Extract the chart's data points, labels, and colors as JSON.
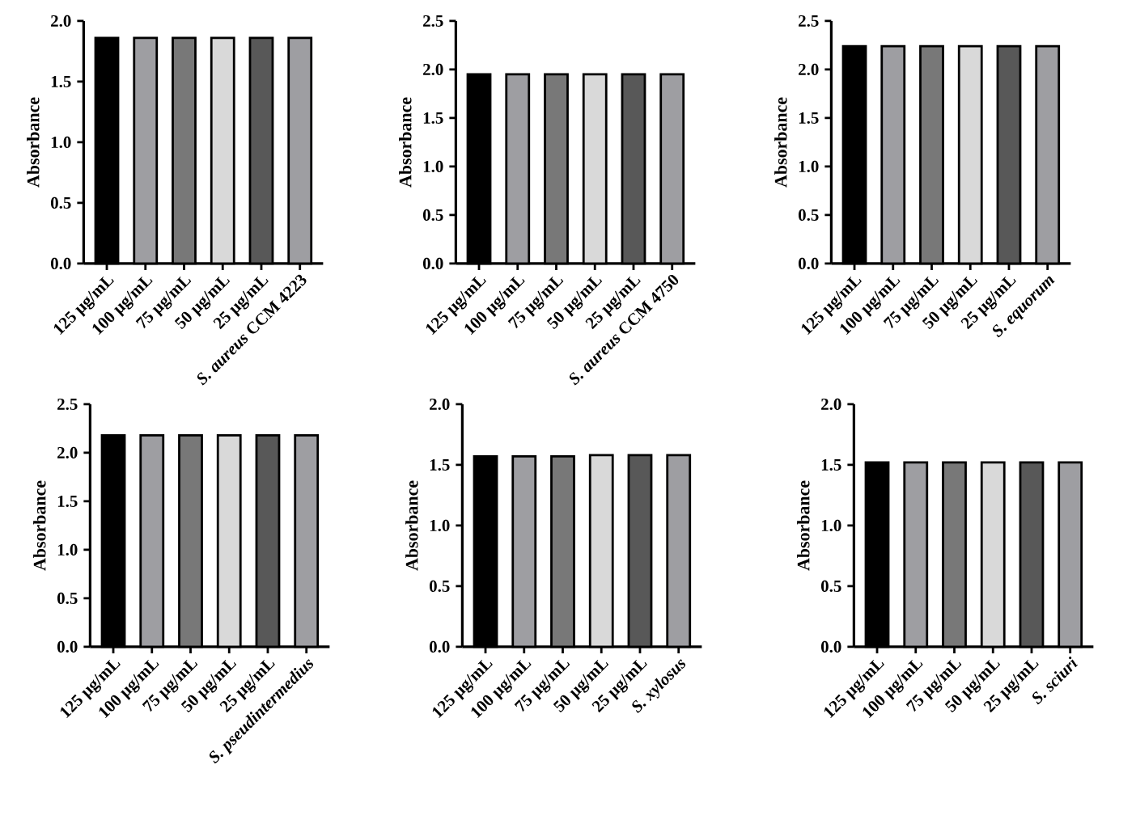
{
  "chart_data": [
    {
      "type": "bar",
      "ylabel": "Absorbance",
      "categories": [
        "125 µg/mL",
        "100 µg/mL",
        "75 µg/mL",
        "50 µg/mL",
        "25 µg/mL",
        "*S. aureus* CCM 4223"
      ],
      "values": [
        1.86,
        1.86,
        1.86,
        1.86,
        1.86,
        1.86
      ],
      "colors": [
        "#000000",
        "#9e9ea2",
        "#787878",
        "#d9d9d9",
        "#585858",
        "#9e9ea2"
      ],
      "ylim": [
        0,
        2
      ],
      "yticks": [
        {
          "value": 0,
          "label": "0.0"
        },
        {
          "value": 0.5,
          "label": "0.5"
        },
        {
          "value": 1,
          "label": "1.0"
        },
        {
          "value": 1.5,
          "label": "1.5"
        },
        {
          "value": 2,
          "label": "2.0"
        }
      ]
    },
    {
      "type": "bar",
      "ylabel": "Absorbance",
      "categories": [
        "125 µg/mL",
        "100 µg/mL",
        "75 µg/mL",
        "50 µg/mL",
        "25 µg/mL",
        "*S. aureus* CCM 4750"
      ],
      "values": [
        1.95,
        1.95,
        1.95,
        1.95,
        1.95,
        1.95
      ],
      "colors": [
        "#000000",
        "#9e9ea2",
        "#787878",
        "#d9d9d9",
        "#585858",
        "#9e9ea2"
      ],
      "ylim": [
        0,
        2.5
      ],
      "yticks": [
        {
          "value": 0,
          "label": "0.0"
        },
        {
          "value": 0.5,
          "label": "0.5"
        },
        {
          "value": 1,
          "label": "1.0"
        },
        {
          "value": 1.5,
          "label": "1.5"
        },
        {
          "value": 2,
          "label": "2.0"
        },
        {
          "value": 2.5,
          "label": "2.5"
        }
      ]
    },
    {
      "type": "bar",
      "ylabel": "Absorbance",
      "categories": [
        "125 µg/mL",
        "100 µg/mL",
        "75 µg/mL",
        "50 µg/mL",
        "25 µg/mL",
        "*S. equorum*"
      ],
      "values": [
        2.24,
        2.24,
        2.24,
        2.24,
        2.24,
        2.24
      ],
      "colors": [
        "#000000",
        "#9e9ea2",
        "#787878",
        "#d9d9d9",
        "#585858",
        "#9e9ea2"
      ],
      "ylim": [
        0,
        2.5
      ],
      "yticks": [
        {
          "value": 0,
          "label": "0.0"
        },
        {
          "value": 0.5,
          "label": "0.5"
        },
        {
          "value": 1,
          "label": "1.0"
        },
        {
          "value": 1.5,
          "label": "1.5"
        },
        {
          "value": 2,
          "label": "2.0"
        },
        {
          "value": 2.5,
          "label": "2.5"
        }
      ]
    },
    {
      "type": "bar",
      "ylabel": "Absorbance",
      "categories": [
        "125 µg/mL",
        "100 µg/mL",
        "75 µg/mL",
        "50 µg/mL",
        "25 µg/mL",
        "*S. pseudintermedius*"
      ],
      "values": [
        2.18,
        2.18,
        2.18,
        2.18,
        2.18,
        2.18
      ],
      "colors": [
        "#000000",
        "#9e9ea2",
        "#787878",
        "#d9d9d9",
        "#585858",
        "#9e9ea2"
      ],
      "ylim": [
        0,
        2.5
      ],
      "yticks": [
        {
          "value": 0,
          "label": "0.0"
        },
        {
          "value": 0.5,
          "label": "0.5"
        },
        {
          "value": 1,
          "label": "1.0"
        },
        {
          "value": 1.5,
          "label": "1.5"
        },
        {
          "value": 2,
          "label": "2.0"
        },
        {
          "value": 2.5,
          "label": "2.5"
        }
      ]
    },
    {
      "type": "bar",
      "ylabel": "Absorbance",
      "categories": [
        "125 µg/mL",
        "100 µg/mL",
        "75 µg/mL",
        "50 µg/mL",
        "25 µg/mL",
        "*S. xylosus*"
      ],
      "values": [
        1.57,
        1.57,
        1.57,
        1.58,
        1.58,
        1.58
      ],
      "colors": [
        "#000000",
        "#9e9ea2",
        "#787878",
        "#d9d9d9",
        "#585858",
        "#9e9ea2"
      ],
      "ylim": [
        0,
        2
      ],
      "yticks": [
        {
          "value": 0,
          "label": "0.0"
        },
        {
          "value": 0.5,
          "label": "0.5"
        },
        {
          "value": 1,
          "label": "1.0"
        },
        {
          "value": 1.5,
          "label": "1.5"
        },
        {
          "value": 2,
          "label": "2.0"
        }
      ]
    },
    {
      "type": "bar",
      "ylabel": "Absorbance",
      "categories": [
        "125 µg/mL",
        "100 µg/mL",
        "75 µg/mL",
        "50 µg/mL",
        "25 µg/mL",
        "*S. sciuri*"
      ],
      "values": [
        1.52,
        1.52,
        1.52,
        1.52,
        1.52,
        1.52
      ],
      "colors": [
        "#000000",
        "#9e9ea2",
        "#787878",
        "#d9d9d9",
        "#585858",
        "#9e9ea2"
      ],
      "ylim": [
        0,
        2
      ],
      "yticks": [
        {
          "value": 0,
          "label": "0.0"
        },
        {
          "value": 0.5,
          "label": "0.5"
        },
        {
          "value": 1,
          "label": "1.0"
        },
        {
          "value": 1.5,
          "label": "1.5"
        },
        {
          "value": 2,
          "label": "2.0"
        }
      ]
    }
  ]
}
